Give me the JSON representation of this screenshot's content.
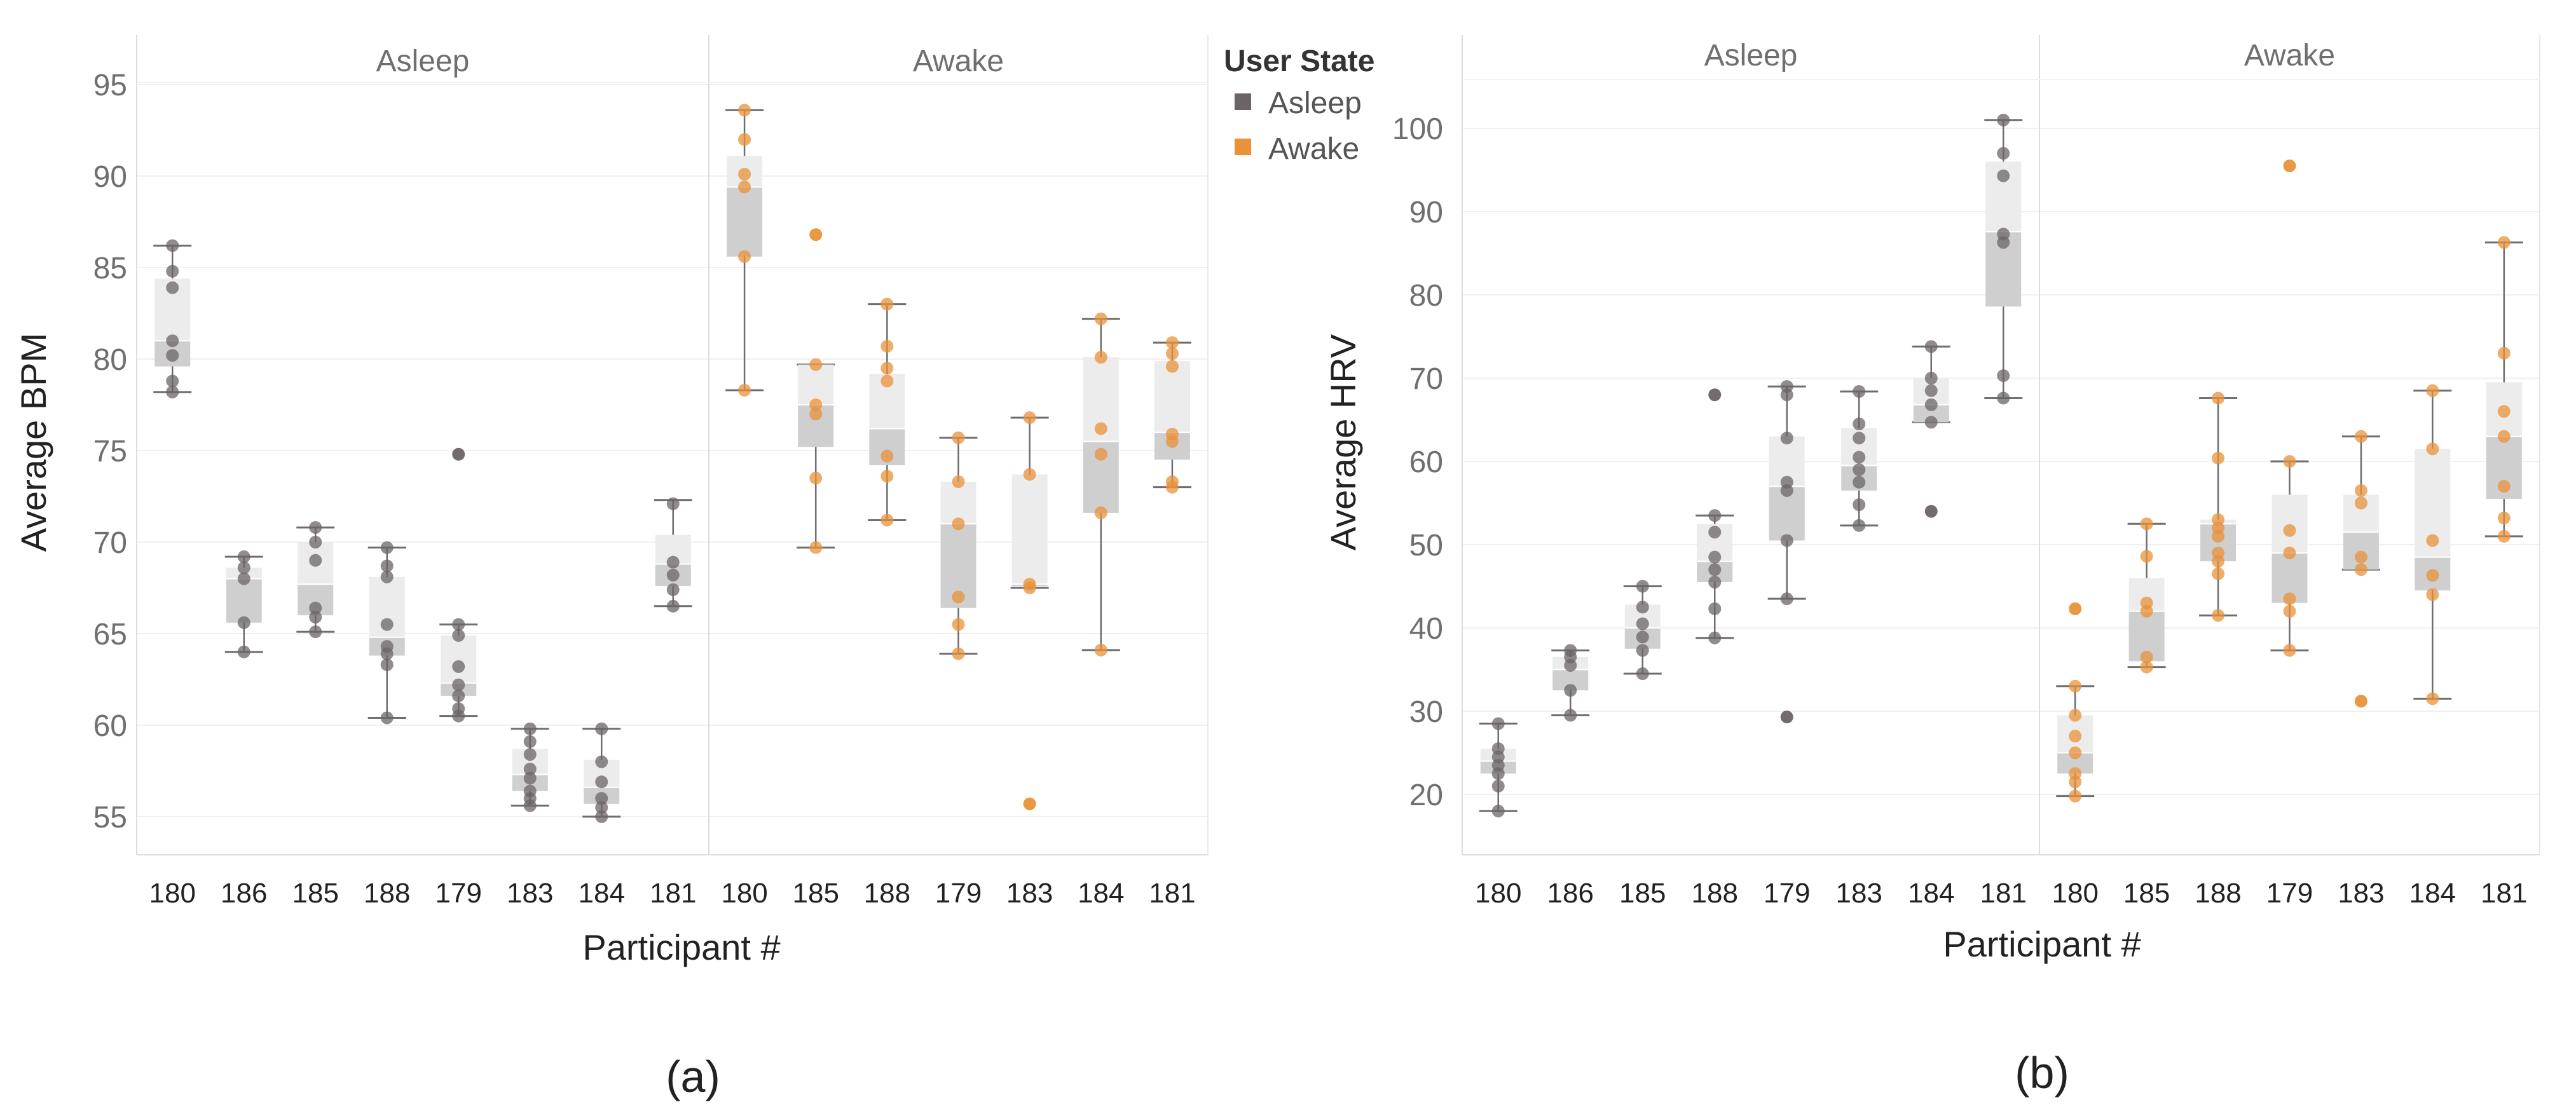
{
  "colors": {
    "asleep": "#6b6466",
    "awake": "#e8923a",
    "box_upper": "#ececec",
    "box_lower": "#cfcfcf",
    "whisker": "#6e6e6e",
    "grid": "#f0f0f0",
    "axis_text": "#6f6f6f",
    "title_text": "#222222"
  },
  "legend": {
    "title": "User State",
    "items": [
      {
        "label": "Asleep",
        "color": "#6b6466"
      },
      {
        "label": "Awake",
        "color": "#e8923a"
      }
    ]
  },
  "chart_data": [
    {
      "type": "box",
      "panel_label": "(a)",
      "xlabel": "Participant #",
      "ylabel": "Average BPM",
      "ylim": [
        53,
        97
      ],
      "yticks": [
        55,
        60,
        65,
        70,
        75,
        80,
        85,
        90,
        95
      ],
      "facets": [
        {
          "name": "Asleep",
          "state": "asleep",
          "participants": [
            {
              "id": "180",
              "min": 78.2,
              "q1": 79.6,
              "median": 81.0,
              "q3": 84.4,
              "max": 86.2,
              "points": [
                78.2,
                78.8,
                80.2,
                81.0,
                83.9,
                84.8,
                86.2
              ],
              "outliers": []
            },
            {
              "id": "186",
              "min": 64.0,
              "q1": 65.6,
              "median": 68.0,
              "q3": 68.6,
              "max": 69.2,
              "points": [
                64.0,
                65.6,
                68.0,
                68.6,
                69.2
              ],
              "outliers": []
            },
            {
              "id": "185",
              "min": 65.1,
              "q1": 66.0,
              "median": 67.7,
              "q3": 70.0,
              "max": 70.8,
              "points": [
                65.1,
                65.9,
                66.4,
                69.0,
                70.0,
                70.8
              ],
              "outliers": []
            },
            {
              "id": "188",
              "min": 60.4,
              "q1": 63.8,
              "median": 64.8,
              "q3": 68.1,
              "max": 69.7,
              "points": [
                60.4,
                63.3,
                63.9,
                64.3,
                65.5,
                68.1,
                68.7,
                69.7
              ],
              "outliers": []
            },
            {
              "id": "179",
              "min": 60.5,
              "q1": 61.6,
              "median": 62.3,
              "q3": 64.9,
              "max": 65.5,
              "points": [
                60.5,
                60.9,
                61.6,
                62.2,
                63.2,
                64.9,
                65.5
              ],
              "outliers": [
                74.8
              ]
            },
            {
              "id": "183",
              "min": 55.6,
              "q1": 56.4,
              "median": 57.3,
              "q3": 58.7,
              "max": 59.8,
              "points": [
                55.6,
                56.0,
                56.4,
                57.1,
                57.6,
                58.4,
                59.1,
                59.8
              ],
              "outliers": []
            },
            {
              "id": "184",
              "min": 55.0,
              "q1": 55.7,
              "median": 56.6,
              "q3": 58.1,
              "max": 59.8,
              "points": [
                55.0,
                55.5,
                56.0,
                56.9,
                58.0,
                59.8
              ],
              "outliers": []
            },
            {
              "id": "181",
              "min": 66.5,
              "q1": 67.6,
              "median": 68.8,
              "q3": 70.4,
              "max": 72.3,
              "points": [
                66.5,
                67.4,
                68.2,
                68.9,
                72.1
              ],
              "outliers": []
            }
          ]
        },
        {
          "name": "Awake",
          "state": "awake",
          "participants": [
            {
              "id": "180",
              "min": 78.3,
              "q1": 85.6,
              "median": 89.4,
              "q3": 91.1,
              "max": 93.6,
              "points": [
                78.3,
                85.6,
                89.4,
                90.1,
                92.0,
                93.6
              ],
              "outliers": []
            },
            {
              "id": "185",
              "min": 69.7,
              "q1": 75.2,
              "median": 77.5,
              "q3": 79.7,
              "max": 79.7,
              "points": [
                69.7,
                73.5,
                77.0,
                77.5,
                79.7
              ],
              "outliers": [
                86.8
              ]
            },
            {
              "id": "188",
              "min": 71.2,
              "q1": 74.2,
              "median": 76.2,
              "q3": 79.2,
              "max": 83.0,
              "points": [
                71.2,
                73.6,
                74.7,
                78.8,
                79.5,
                80.7,
                83.0
              ],
              "outliers": []
            },
            {
              "id": "179",
              "min": 63.9,
              "q1": 66.4,
              "median": 71.0,
              "q3": 73.3,
              "max": 75.7,
              "points": [
                63.9,
                65.5,
                67.0,
                71.0,
                73.3,
                75.7
              ],
              "outliers": []
            },
            {
              "id": "183",
              "min": 67.5,
              "q1": 67.6,
              "median": 67.7,
              "q3": 73.7,
              "max": 76.8,
              "points": [
                67.5,
                67.7,
                73.7,
                76.8
              ],
              "outliers": [
                55.7
              ]
            },
            {
              "id": "184",
              "min": 64.1,
              "q1": 71.6,
              "median": 75.5,
              "q3": 80.1,
              "max": 82.2,
              "points": [
                64.1,
                71.6,
                74.8,
                76.2,
                80.1,
                82.2
              ],
              "outliers": []
            },
            {
              "id": "181",
              "min": 73.0,
              "q1": 74.5,
              "median": 76.0,
              "q3": 79.9,
              "max": 80.9,
              "points": [
                73.0,
                73.3,
                75.5,
                75.9,
                79.6,
                80.3,
                80.9
              ],
              "outliers": []
            }
          ]
        }
      ]
    },
    {
      "type": "box",
      "panel_label": "(b)",
      "xlabel": "Participant #",
      "ylabel": "Average HRV",
      "ylim": [
        13,
        107
      ],
      "yticks": [
        20,
        30,
        40,
        50,
        60,
        70,
        80,
        90,
        100
      ],
      "facets": [
        {
          "name": "Asleep",
          "state": "asleep",
          "participants": [
            {
              "id": "180",
              "min": 18.0,
              "q1": 22.5,
              "median": 24.0,
              "q3": 25.5,
              "max": 28.5,
              "points": [
                18.0,
                21.0,
                22.5,
                23.5,
                24.5,
                25.5,
                28.5
              ],
              "outliers": []
            },
            {
              "id": "186",
              "min": 29.5,
              "q1": 32.5,
              "median": 35.0,
              "q3": 36.5,
              "max": 37.3,
              "points": [
                29.5,
                32.5,
                35.5,
                36.5,
                37.3
              ],
              "outliers": []
            },
            {
              "id": "185",
              "min": 34.5,
              "q1": 37.5,
              "median": 40.0,
              "q3": 42.8,
              "max": 45.0,
              "points": [
                34.5,
                37.3,
                38.9,
                40.5,
                42.5,
                45.0
              ],
              "outliers": []
            },
            {
              "id": "188",
              "min": 38.8,
              "q1": 45.5,
              "median": 48.0,
              "q3": 52.5,
              "max": 53.5,
              "points": [
                38.8,
                42.3,
                45.5,
                47.0,
                48.5,
                51.5,
                53.5
              ],
              "outliers": [
                68.0
              ]
            },
            {
              "id": "179",
              "min": 43.5,
              "q1": 50.5,
              "median": 57.0,
              "q3": 63.0,
              "max": 69.0,
              "points": [
                43.5,
                50.5,
                56.5,
                57.5,
                62.8,
                68.0,
                69.0
              ],
              "outliers": [
                29.3
              ]
            },
            {
              "id": "183",
              "min": 52.3,
              "q1": 56.5,
              "median": 59.5,
              "q3": 64.0,
              "max": 68.4,
              "points": [
                52.3,
                54.8,
                57.5,
                59.0,
                60.5,
                62.8,
                64.5,
                68.4
              ],
              "outliers": []
            },
            {
              "id": "184",
              "min": 64.7,
              "q1": 64.7,
              "median": 66.8,
              "q3": 70.0,
              "max": 73.8,
              "points": [
                64.7,
                66.8,
                68.5,
                70.0,
                73.8
              ],
              "outliers": [
                54.0
              ]
            },
            {
              "id": "181",
              "min": 67.6,
              "q1": 78.6,
              "median": 87.6,
              "q3": 96.0,
              "max": 101.0,
              "points": [
                67.6,
                70.3,
                86.3,
                87.3,
                94.3,
                97.0,
                101.0
              ],
              "outliers": []
            }
          ]
        },
        {
          "name": "Awake",
          "state": "awake",
          "participants": [
            {
              "id": "180",
              "min": 19.8,
              "q1": 22.5,
              "median": 25.0,
              "q3": 29.5,
              "max": 33.0,
              "points": [
                19.8,
                21.5,
                22.5,
                25.0,
                27.0,
                29.5,
                33.0
              ],
              "outliers": [
                42.3
              ]
            },
            {
              "id": "185",
              "min": 35.3,
              "q1": 36.0,
              "median": 42.0,
              "q3": 46.0,
              "max": 52.5,
              "points": [
                35.3,
                36.5,
                42.0,
                43.0,
                48.6,
                52.5
              ],
              "outliers": []
            },
            {
              "id": "188",
              "min": 41.5,
              "q1": 48.0,
              "median": 52.5,
              "q3": 53.0,
              "max": 67.6,
              "points": [
                41.5,
                46.5,
                48.0,
                49.0,
                51.0,
                52.0,
                53.0,
                60.4,
                67.6
              ],
              "outliers": []
            },
            {
              "id": "179",
              "min": 37.3,
              "q1": 43.0,
              "median": 49.0,
              "q3": 56.0,
              "max": 60.0,
              "points": [
                37.3,
                42.0,
                43.5,
                49.0,
                51.7,
                60.0
              ],
              "outliers": [
                95.5
              ]
            },
            {
              "id": "183",
              "min": 47.0,
              "q1": 47.0,
              "median": 51.5,
              "q3": 56.0,
              "max": 63.0,
              "points": [
                47.0,
                48.5,
                55.0,
                56.5,
                63.0
              ],
              "outliers": [
                31.2
              ]
            },
            {
              "id": "184",
              "min": 31.5,
              "q1": 44.5,
              "median": 48.5,
              "q3": 61.5,
              "max": 68.5,
              "points": [
                31.5,
                44.0,
                46.3,
                50.5,
                61.5,
                68.5
              ],
              "outliers": []
            },
            {
              "id": "181",
              "min": 51.0,
              "q1": 55.5,
              "median": 63.0,
              "q3": 69.5,
              "max": 86.3,
              "points": [
                51.0,
                53.2,
                57.0,
                63.0,
                66.0,
                73.0,
                86.3
              ],
              "outliers": []
            }
          ]
        }
      ]
    }
  ]
}
